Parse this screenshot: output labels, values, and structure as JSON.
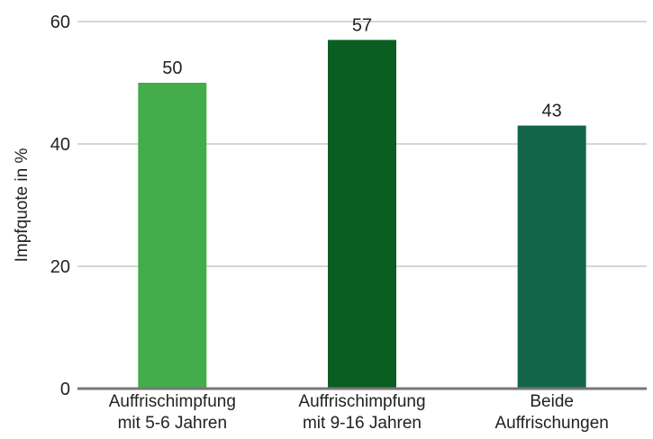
{
  "chart_data": {
    "type": "bar",
    "categories": [
      [
        "Auffrischimpfung",
        "mit 5-6 Jahren"
      ],
      [
        "Auffrischimpfung",
        "mit 9-16 Jahren"
      ],
      [
        "Beide",
        "Auffrischungen"
      ]
    ],
    "values": [
      50,
      57,
      43
    ],
    "colors": [
      "#43ac4b",
      "#0b5e22",
      "#13654a"
    ],
    "title": "",
    "xlabel": "",
    "ylabel": "Impfquote in %",
    "ylim": [
      0,
      60
    ],
    "yticks": [
      0,
      20,
      40,
      60
    ],
    "grid": true,
    "legend": "none"
  }
}
